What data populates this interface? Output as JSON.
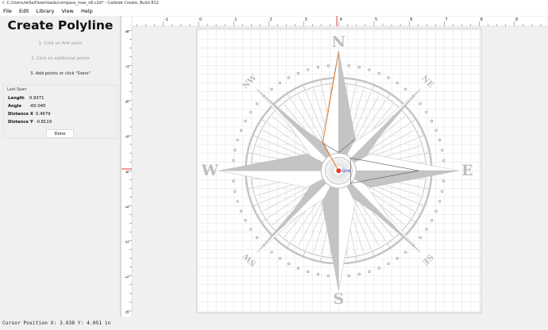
{
  "window": {
    "title": "C:/Users/willa/Downloads/compass_rose_v8.c2d* - Carbide Create, Build 812",
    "icon": "carbide-icon"
  },
  "menu": [
    "File",
    "Edit",
    "Library",
    "View",
    "Help"
  ],
  "panel": {
    "title": "Create Polyline",
    "steps": [
      "1. Click on first point",
      "2. Click on additional points",
      "3. Add points or click \"Done\""
    ],
    "last_span": {
      "label": "Last Span",
      "rows": [
        {
          "k": "Length",
          "v": "0.9371"
        },
        {
          "k": "Angle",
          "v": "-60.045"
        },
        {
          "k": "Distance X",
          "v": "0.4679"
        },
        {
          "k": "Distance Y",
          "v": "-0.8119"
        }
      ]
    },
    "done_label": "Done"
  },
  "ruler": {
    "x_labels": [
      "-1",
      "0",
      "1",
      "2",
      "3",
      "4",
      "5",
      "6",
      "7",
      "8",
      "9"
    ],
    "y_labels": [
      "8",
      "7",
      "6",
      "5",
      "4",
      "3",
      "2",
      "1",
      "0"
    ],
    "cursor_x": 3.938,
    "cursor_y": 4.051,
    "cursor_color": "#e53935"
  },
  "compass": {
    "cardinals": [
      "N",
      "E",
      "S",
      "W"
    ],
    "intercardinals": [
      "NE",
      "SE",
      "SW",
      "NW"
    ],
    "origin_label": "Grid"
  },
  "colors": {
    "polyline_active": "#e87a2a",
    "compass_gray": "#c4c4c4"
  },
  "status": "Cursor Position X: 3.938 Y: 4.051 in"
}
